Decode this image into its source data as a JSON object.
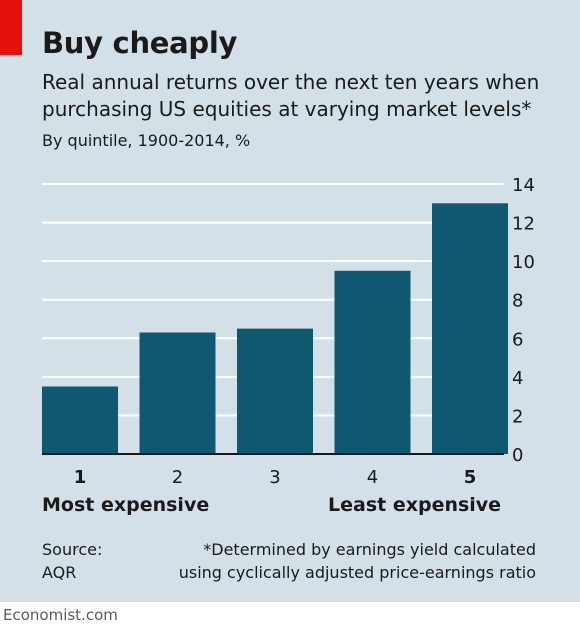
{
  "header": {
    "title": "Buy cheaply",
    "subtitle": "Real annual returns over the next ten years when purchasing US equities at varying market levels*",
    "unit_note": "By quintile, 1900-2014, %"
  },
  "chart_data": {
    "type": "bar",
    "categories": [
      "1",
      "2",
      "3",
      "4",
      "5"
    ],
    "values": [
      3.5,
      6.3,
      6.5,
      9.5,
      13.0
    ],
    "y_ticks": [
      "0",
      "2",
      "4",
      "6",
      "8",
      "10",
      "12",
      "14"
    ],
    "ylim": [
      0,
      14
    ],
    "bold_categories": [
      "1",
      "5"
    ],
    "category_notes": {
      "left": "Most expensive",
      "right": "Least expensive"
    },
    "grid": true,
    "y_axis_side": "right",
    "colors": {
      "bar": "#0f5871",
      "background": "#d3e0e8",
      "grid": "#ffffff",
      "baseline": "#1a1a1a",
      "accent": "#e3120b"
    }
  },
  "footer": {
    "source_line1": "Source:",
    "source_line2": "AQR",
    "footnote_line1": "*Determined by earnings yield calculated",
    "footnote_line2": "using cyclically adjusted price-earnings ratio",
    "brand": "Economist.com"
  }
}
